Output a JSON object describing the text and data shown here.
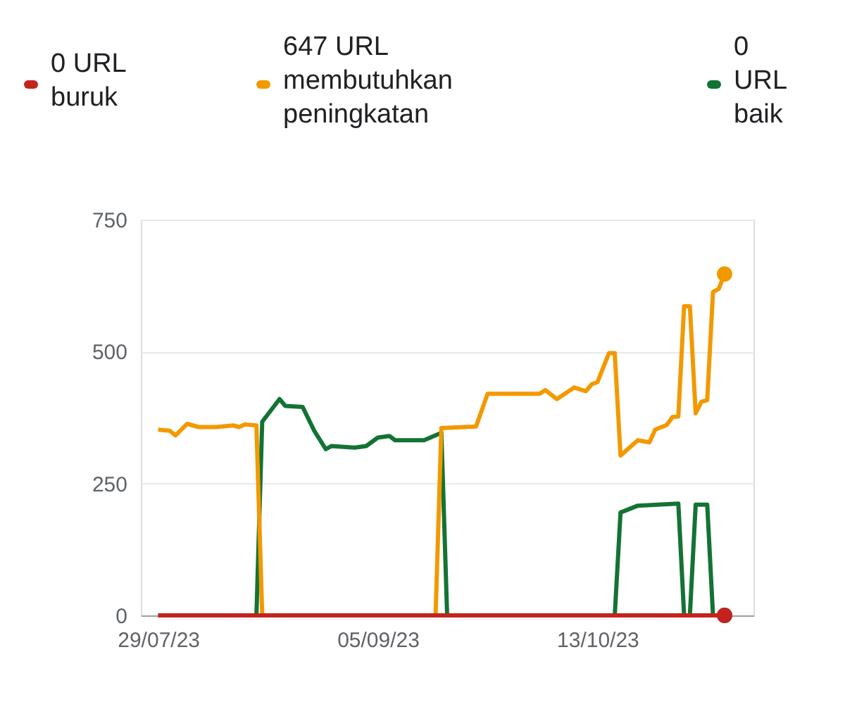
{
  "chart_data": {
    "type": "line",
    "series": [
      {
        "name": "0 URL buruk",
        "color": "#c5221f",
        "x": [
          "2023-07-29",
          "2023-11-04"
        ],
        "values": [
          0,
          0
        ]
      },
      {
        "name": "647 URL membutuhkan peningkatan",
        "color": "#f29900",
        "x": [
          "2023-07-29",
          "2023-07-31",
          "2023-08-01",
          "2023-08-03",
          "2023-08-05",
          "2023-08-08",
          "2023-08-11",
          "2023-08-12",
          "2023-08-13",
          "2023-08-15",
          "2023-08-16",
          "2023-09-15",
          "2023-09-16",
          "2023-09-22",
          "2023-09-24",
          "2023-10-03",
          "2023-10-04",
          "2023-10-06",
          "2023-10-09",
          "2023-10-11",
          "2023-10-12",
          "2023-10-13",
          "2023-10-15",
          "2023-10-16",
          "2023-10-17",
          "2023-10-20",
          "2023-10-22",
          "2023-10-23",
          "2023-10-25",
          "2023-10-26",
          "2023-10-27",
          "2023-10-28",
          "2023-10-29",
          "2023-10-30",
          "2023-10-31",
          "2023-11-01",
          "2023-11-02",
          "2023-11-03",
          "2023-11-04"
        ],
        "values": [
          352,
          350,
          341,
          363,
          357,
          357,
          360,
          357,
          362,
          360,
          0,
          0,
          355,
          358,
          420,
          420,
          427,
          410,
          432,
          425,
          438,
          442,
          497,
          497,
          303,
          332,
          328,
          352,
          361,
          376,
          377,
          586,
          586,
          383,
          405,
          408,
          613,
          619,
          647
        ]
      },
      {
        "name": "0 URL baik",
        "color": "#137333",
        "x": [
          "2023-07-29",
          "2023-08-15",
          "2023-08-16",
          "2023-08-19",
          "2023-08-20",
          "2023-08-23",
          "2023-08-25",
          "2023-08-27",
          "2023-08-28",
          "2023-09-01",
          "2023-09-03",
          "2023-09-05",
          "2023-09-07",
          "2023-09-08",
          "2023-09-13",
          "2023-09-16",
          "2023-09-17",
          "2023-10-16",
          "2023-10-17",
          "2023-10-20",
          "2023-10-27",
          "2023-10-28",
          "2023-10-29",
          "2023-10-30",
          "2023-11-01",
          "2023-11-02",
          "2023-11-04"
        ],
        "values": [
          0,
          0,
          367,
          410,
          397,
          395,
          350,
          315,
          321,
          318,
          321,
          337,
          340,
          332,
          332,
          346,
          0,
          0,
          195,
          208,
          212,
          0,
          0,
          210,
          210,
          0,
          0
        ]
      }
    ],
    "xlim": [
      "2023-07-26",
      "2023-11-09"
    ],
    "xticks": [
      {
        "value": "2023-07-29",
        "label": "29/07/23"
      },
      {
        "value": "2023-09-05",
        "label": "05/09/23"
      },
      {
        "value": "2023-10-13",
        "label": "13/10/23"
      }
    ],
    "ylim": [
      0,
      750
    ],
    "yticks": [
      0,
      250,
      500,
      750
    ],
    "grid": "y",
    "legend": "top"
  }
}
